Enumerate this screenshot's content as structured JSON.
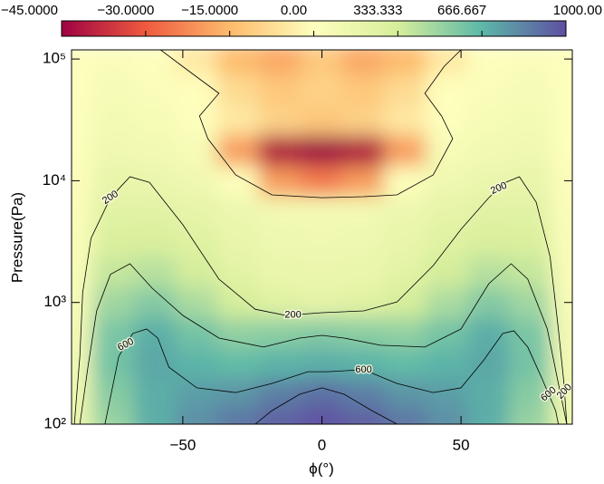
{
  "chart_data": {
    "type": "heatmap",
    "x_label": "ϕ(°)",
    "y_label": "Pressure(Pa)",
    "xlim": [
      -90,
      90
    ],
    "ylim": [
      100,
      118900
    ],
    "y_log": true,
    "xticks": [
      {
        "value": -50,
        "label": "−50"
      },
      0,
      50
    ],
    "yticks": [
      {
        "value": 100,
        "label": "10²"
      },
      {
        "value": 1000,
        "label": "10³"
      },
      {
        "value": 10000,
        "label": "10⁴"
      },
      {
        "value": 100000,
        "label": "10⁵"
      }
    ],
    "x": [
      -90,
      -75,
      -60,
      -45,
      -30,
      -15,
      0,
      15,
      30,
      45,
      60,
      75,
      90
    ],
    "y": [
      100,
      178,
      316,
      562,
      1000,
      1778,
      3162,
      5623,
      10000,
      17783,
      31623,
      56234,
      100000
    ],
    "z": [
      [
        150,
        500,
        700,
        800,
        880,
        950,
        1000,
        950,
        880,
        800,
        700,
        500,
        150
      ],
      [
        120,
        550,
        700,
        750,
        780,
        850,
        900,
        850,
        780,
        750,
        700,
        550,
        120
      ],
      [
        100,
        600,
        720,
        680,
        650,
        680,
        700,
        680,
        650,
        680,
        720,
        600,
        100
      ],
      [
        80,
        580,
        700,
        600,
        520,
        540,
        560,
        540,
        520,
        600,
        700,
        580,
        80
      ],
      [
        60,
        480,
        560,
        450,
        330,
        250,
        220,
        250,
        330,
        450,
        560,
        480,
        60
      ],
      [
        50,
        380,
        420,
        340,
        230,
        170,
        160,
        170,
        230,
        340,
        420,
        380,
        50
      ],
      [
        40,
        300,
        310,
        260,
        180,
        130,
        120,
        130,
        180,
        260,
        310,
        300,
        40
      ],
      [
        30,
        240,
        240,
        200,
        140,
        100,
        90,
        100,
        140,
        200,
        240,
        240,
        30
      ],
      [
        20,
        180,
        160,
        120,
        5,
        -20,
        -25,
        -20,
        5,
        120,
        160,
        180,
        20
      ],
      [
        10,
        120,
        100,
        60,
        -20,
        -42,
        -45,
        -42,
        -20,
        60,
        100,
        120,
        10
      ],
      [
        10,
        90,
        70,
        5,
        -5,
        -10,
        -12,
        -10,
        -5,
        5,
        70,
        90,
        10
      ],
      [
        5,
        60,
        30,
        3,
        -8,
        -12,
        -10,
        -12,
        -8,
        3,
        30,
        60,
        5
      ],
      [
        5,
        30,
        5,
        -5,
        -15,
        -18,
        -12,
        -18,
        -15,
        -5,
        5,
        30,
        5
      ]
    ],
    "colorbar": {
      "ticks": [
        {
          "value": -45,
          "label": "−45.0000"
        },
        {
          "value": -30,
          "label": "−30.0000"
        },
        {
          "value": -15,
          "label": "−15.0000"
        },
        {
          "value": 0,
          "label": "0.00"
        },
        {
          "value": 333.333,
          "label": "333.333"
        },
        {
          "value": 666.667,
          "label": "666.667"
        },
        {
          "value": 1000,
          "label": "1000.00"
        }
      ],
      "colors": [
        "#9e0142",
        "#ef5a3f",
        "#fdbb6c",
        "#fefebd",
        "#d6ee9b",
        "#5cb8a8",
        "#5e4fa2"
      ]
    },
    "contour_color": "#000000",
    "contours": [
      {
        "x": [
          -24,
          -18,
          -8,
          0,
          8,
          18,
          27
        ],
        "y": [
          100,
          129,
          176,
          199,
          176,
          129,
          100
        ]
      },
      {
        "level": 600,
        "x": [
          -78,
          -75,
          -73,
          -68,
          -63,
          -59,
          -55,
          -45,
          -31,
          -18,
          -5,
          2,
          15,
          27,
          40,
          50,
          58,
          65,
          69,
          74,
          79,
          84,
          85
        ],
        "y": [
          100,
          216,
          362,
          556,
          605,
          510,
          294,
          199,
          182,
          216,
          270,
          270,
          280,
          216,
          182,
          199,
          332,
          556,
          585,
          430,
          240,
          129,
          100
        ]
      },
      {
        "x": [
          -87,
          -84,
          -81,
          -76,
          -69,
          -61,
          -50,
          -37,
          -21,
          -8,
          0,
          8,
          21,
          37,
          50,
          60,
          68,
          74,
          81,
          85,
          88
        ],
        "y": [
          100,
          305,
          850,
          1700,
          2080,
          1309,
          783,
          510,
          430,
          510,
          537,
          510,
          445,
          430,
          605,
          1426,
          2080,
          1554,
          605,
          216,
          100
        ]
      },
      {
        "level": 200,
        "x": [
          -89,
          -87,
          -86,
          -83,
          -76,
          -69,
          -62,
          -50,
          -37,
          -24,
          -13,
          0,
          15,
          27,
          40,
          50,
          60,
          66,
          71,
          77,
          82,
          85,
          87,
          88
        ],
        "y": [
          100,
          362,
          1202,
          3360,
          7260,
          10790,
          9700,
          4350,
          1554,
          880,
          783,
          824,
          853,
          1010,
          2010,
          3990,
          7260,
          9700,
          10790,
          6670,
          2390,
          605,
          216,
          100
        ]
      },
      {
        "x": [
          -58,
          -48,
          -37,
          -44,
          -41,
          -31,
          -18,
          0,
          15,
          27,
          40,
          47,
          43,
          37,
          44,
          50
        ],
        "y": [
          118900,
          80200,
          52200,
          34000,
          22140,
          11160,
          7650,
          7260,
          7390,
          7650,
          11160,
          22140,
          34000,
          52200,
          87300,
          118900
        ]
      }
    ]
  }
}
